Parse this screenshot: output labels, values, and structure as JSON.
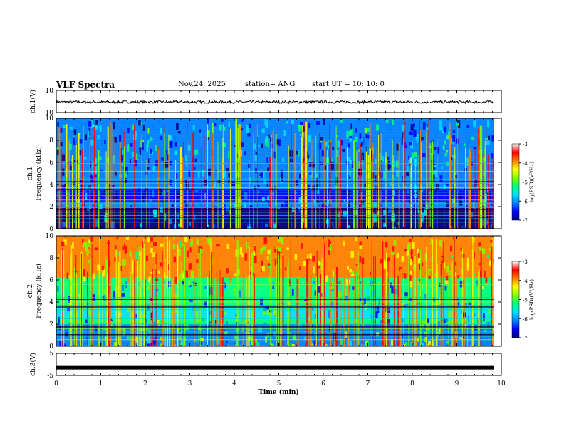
{
  "header": {
    "title": "VLF Spectra",
    "date": "Nov.24, 2025",
    "station": "station= ANG",
    "start": "start  UT =  10: 10: 0"
  },
  "colors": {
    "palette": [
      "#000080",
      "#0000ff",
      "#0080ff",
      "#00e0ff",
      "#00ff80",
      "#80ff00",
      "#ffff00",
      "#ff8000",
      "#ff0000",
      "#ffffff"
    ],
    "background": "#ffffff",
    "ink": "#000000"
  },
  "chart_data": [
    {
      "type": "line",
      "panel": "ch1_waveform",
      "title": "VLF Spectra",
      "ylabel": "ch.1(V)",
      "ylim": [
        -10,
        10
      ],
      "yticks": [
        10,
        -10
      ],
      "x": [
        0,
        10
      ],
      "mean_value": -0.5,
      "amplitude": 1.2
    },
    {
      "type": "heatmap",
      "panel": "ch1_spectrogram",
      "ylabel": "ch.1 Frequency (kHz)",
      "ylim": [
        0,
        10
      ],
      "yticks": [
        0,
        2,
        4,
        6,
        8,
        10
      ],
      "xlim": [
        0,
        10
      ],
      "background_level": -6,
      "sferics_count": 160,
      "narrowband_lines_khz": [
        0.6,
        0.9,
        1.2,
        1.5,
        1.9,
        2.3,
        2.6,
        3.0,
        3.3,
        3.7,
        4.1,
        4.5,
        5.2,
        5.9
      ],
      "colorbar": {
        "label": "log(PSD)(V²/Hz)",
        "range": [
          -7,
          -3
        ],
        "ticks": [
          "-3",
          "-4",
          "-5",
          "-6",
          "-7"
        ]
      }
    },
    {
      "type": "heatmap",
      "panel": "ch2_spectrogram",
      "ylabel": "ch.2 Frequency (kHz)",
      "ylim": [
        0,
        10
      ],
      "yticks": [
        0,
        2,
        4,
        6,
        8,
        10
      ],
      "xlim": [
        0,
        10
      ],
      "background_level": -5,
      "sferics_count": 190,
      "narrowband_lines_khz": [
        0.6,
        0.9,
        1.3,
        1.6,
        2.0,
        2.5,
        3.0,
        3.3,
        3.7,
        4.0,
        4.4,
        5.0,
        5.6
      ],
      "colorbar": {
        "label": "log(PSD)(V²/Hz)",
        "range": [
          -7,
          -3
        ],
        "ticks": [
          "-3",
          "-4",
          "-5",
          "-6",
          "-7"
        ]
      }
    },
    {
      "type": "line",
      "panel": "ch3_waveform",
      "ylabel": "ch.3(V)",
      "ylim": [
        -5,
        5
      ],
      "yticks": [
        5,
        -5
      ],
      "x": [
        0,
        10
      ],
      "mean_value": -1.5
    }
  ],
  "xaxis": {
    "label": "Time (min)",
    "range": [
      0,
      10
    ],
    "ticks": [
      "0",
      "1",
      "2",
      "3",
      "4",
      "5",
      "6",
      "7",
      "8",
      "9",
      "10"
    ]
  }
}
